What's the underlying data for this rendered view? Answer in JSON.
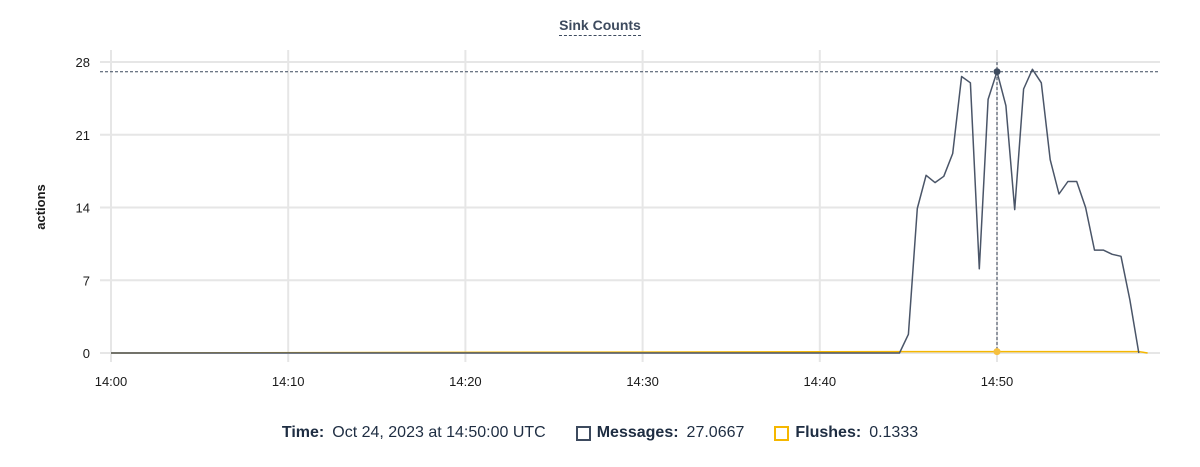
{
  "chart_data": {
    "type": "line",
    "title": "Sink Counts",
    "ylabel": "actions",
    "xlabel": "",
    "ylim": [
      0,
      28
    ],
    "yticks": [
      "0",
      "7",
      "14",
      "21",
      "28"
    ],
    "xlim": [
      "14:00:00",
      "14:58:30"
    ],
    "xticks": [
      "14:00",
      "14:10",
      "14:20",
      "14:30",
      "14:40",
      "14:50"
    ],
    "grid": true,
    "series": [
      {
        "name": "Messages",
        "color": "#4a5568",
        "points": [
          [
            "14:00:00",
            0
          ],
          [
            "14:44:30",
            0
          ],
          [
            "14:45:00",
            1.8
          ],
          [
            "14:45:30",
            13.9
          ],
          [
            "14:46:00",
            17.1
          ],
          [
            "14:46:30",
            16.4
          ],
          [
            "14:47:00",
            17.0
          ],
          [
            "14:47:30",
            19.2
          ],
          [
            "14:48:00",
            26.6
          ],
          [
            "14:48:30",
            26.0
          ],
          [
            "14:49:00",
            8.1
          ],
          [
            "14:49:30",
            24.4
          ],
          [
            "14:50:00",
            27.0667
          ],
          [
            "14:50:30",
            23.8
          ],
          [
            "14:51:00",
            13.8
          ],
          [
            "14:51:30",
            25.4
          ],
          [
            "14:52:00",
            27.3
          ],
          [
            "14:52:30",
            26.0
          ],
          [
            "14:53:00",
            18.6
          ],
          [
            "14:53:30",
            15.3
          ],
          [
            "14:54:00",
            16.5
          ],
          [
            "14:54:30",
            16.5
          ],
          [
            "14:55:00",
            14.0
          ],
          [
            "14:55:30",
            9.9
          ],
          [
            "14:56:00",
            9.9
          ],
          [
            "14:56:30",
            9.5
          ],
          [
            "14:57:00",
            9.3
          ],
          [
            "14:57:30",
            5.1
          ],
          [
            "14:58:00",
            0
          ]
        ]
      },
      {
        "name": "Flushes",
        "color": "#f5b700",
        "points": [
          [
            "14:00:00",
            0
          ],
          [
            "14:44:30",
            0.13
          ],
          [
            "14:50:00",
            0.1333
          ],
          [
            "14:58:00",
            0.13
          ],
          [
            "14:58:30",
            0
          ]
        ]
      }
    ],
    "hover": {
      "time_label": "Time:",
      "time_value": "Oct 24, 2023 at 14:50:00 UTC",
      "x": "14:50:00",
      "items": [
        {
          "label": "Messages:",
          "value": "27.0667",
          "color": "#3d4a5e"
        },
        {
          "label": "Flushes:",
          "value": "0.1333",
          "color": "#f5b700"
        }
      ]
    }
  }
}
